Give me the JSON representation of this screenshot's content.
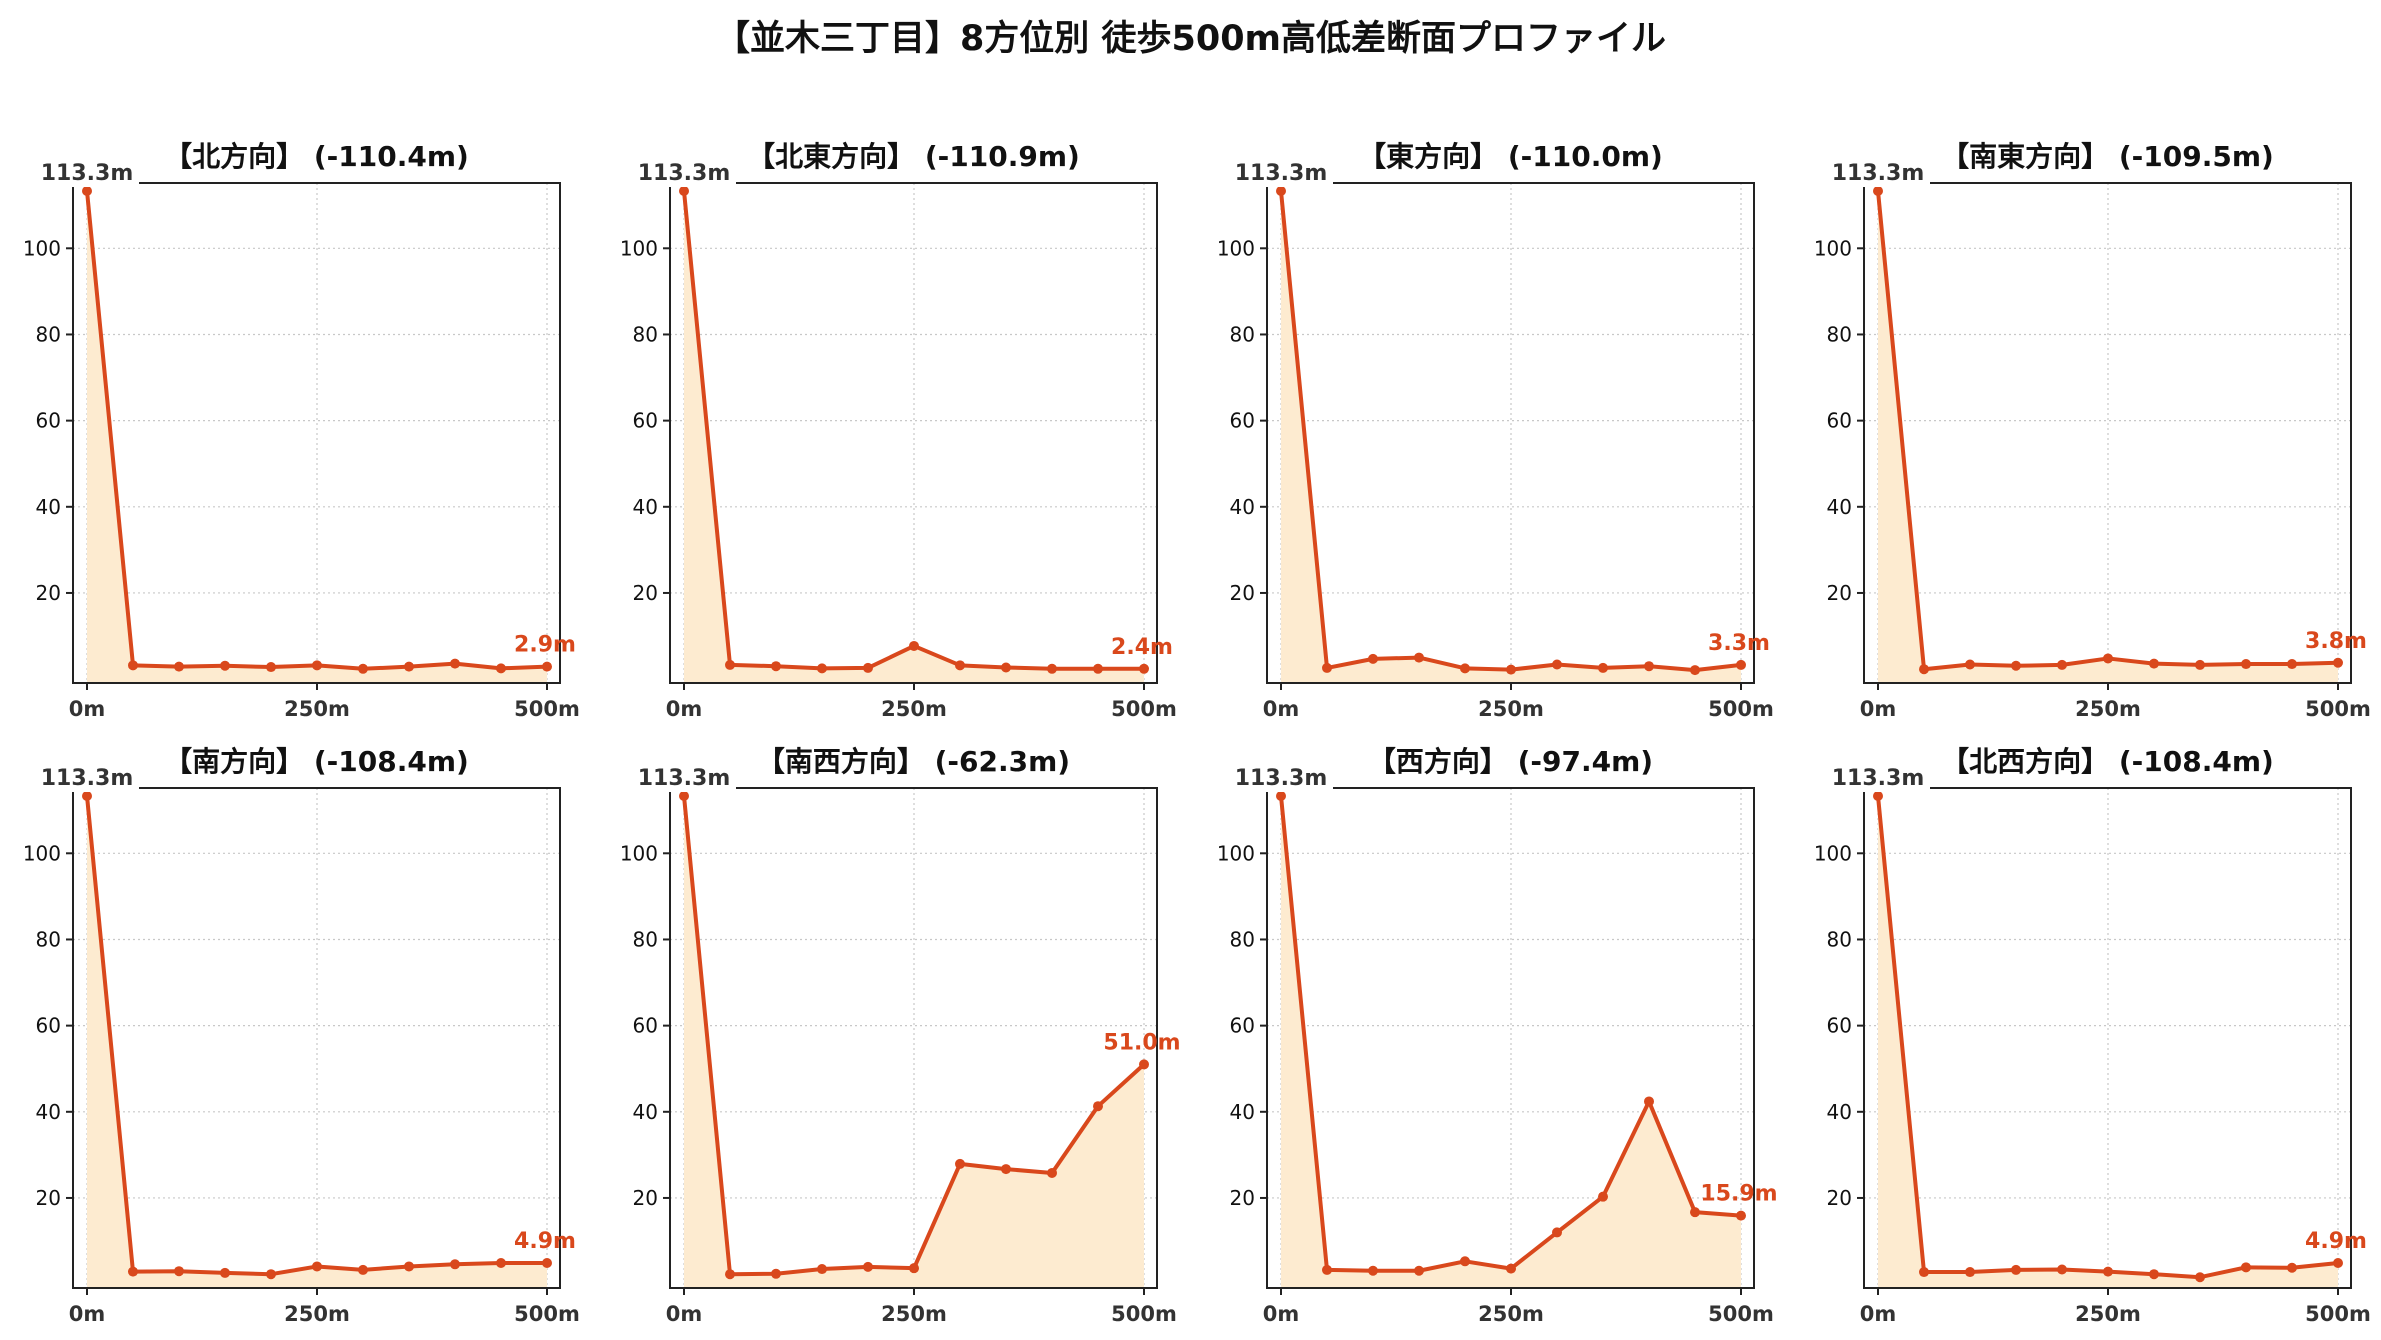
{
  "figure_title": "【並木三丁目】8方位別 徒歩500m高低差断面プロファイル",
  "colors": {
    "line": "#d9481c",
    "fill": "#fdebd0",
    "grid": "#c8c8c8",
    "axis": "#222222",
    "tick_text": "#333333"
  },
  "chart_data": [
    {
      "type": "area",
      "title": "【北方向】 (-110.4m)",
      "x": [
        0,
        50,
        100,
        150,
        200,
        250,
        300,
        350,
        400,
        450,
        500
      ],
      "values": [
        113.3,
        3.2,
        2.9,
        3.1,
        2.8,
        3.2,
        2.4,
        2.9,
        3.6,
        2.5,
        2.9
      ],
      "x_tick_labels": [
        "0m",
        "250m",
        "500m"
      ],
      "y_ticks": [
        20,
        40,
        60,
        80,
        100
      ],
      "start_label": "113.3m",
      "end_label": "2.9m",
      "xlim": [
        0,
        500
      ],
      "ylim": [
        0,
        113.3
      ],
      "grid": true
    },
    {
      "type": "area",
      "title": "【北東方向】 (-110.9m)",
      "x": [
        0,
        50,
        100,
        150,
        200,
        250,
        300,
        350,
        400,
        450,
        500
      ],
      "values": [
        113.3,
        3.3,
        3.0,
        2.5,
        2.6,
        7.7,
        3.2,
        2.7,
        2.4,
        2.4,
        2.4
      ],
      "x_tick_labels": [
        "0m",
        "250m",
        "500m"
      ],
      "y_ticks": [
        20,
        40,
        60,
        80,
        100
      ],
      "start_label": "113.3m",
      "end_label": "2.4m",
      "xlim": [
        0,
        500
      ],
      "ylim": [
        0,
        113.3
      ],
      "grid": true
    },
    {
      "type": "area",
      "title": "【東方向】 (-110.0m)",
      "x": [
        0,
        50,
        100,
        150,
        200,
        250,
        300,
        350,
        400,
        450,
        500
      ],
      "values": [
        113.3,
        2.6,
        4.7,
        5.0,
        2.5,
        2.2,
        3.4,
        2.6,
        3.0,
        2.1,
        3.3
      ],
      "x_tick_labels": [
        "0m",
        "250m",
        "500m"
      ],
      "y_ticks": [
        20,
        40,
        60,
        80,
        100
      ],
      "start_label": "113.3m",
      "end_label": "3.3m",
      "xlim": [
        0,
        500
      ],
      "ylim": [
        0,
        113.3
      ],
      "grid": true
    },
    {
      "type": "area",
      "title": "【南東方向】 (-109.5m)",
      "x": [
        0,
        50,
        100,
        150,
        200,
        250,
        300,
        350,
        400,
        450,
        500
      ],
      "values": [
        113.3,
        2.3,
        3.4,
        3.1,
        3.3,
        4.8,
        3.6,
        3.3,
        3.5,
        3.5,
        3.8
      ],
      "x_tick_labels": [
        "0m",
        "250m",
        "500m"
      ],
      "y_ticks": [
        20,
        40,
        60,
        80,
        100
      ],
      "start_label": "113.3m",
      "end_label": "3.8m",
      "xlim": [
        0,
        500
      ],
      "ylim": [
        0,
        113.3
      ],
      "grid": true
    },
    {
      "type": "area",
      "title": "【南方向】 (-108.4m)",
      "x": [
        0,
        50,
        100,
        150,
        200,
        250,
        300,
        350,
        400,
        450,
        500
      ],
      "values": [
        113.3,
        2.9,
        3.0,
        2.6,
        2.3,
        4.1,
        3.3,
        4.1,
        4.6,
        4.9,
        4.9
      ],
      "x_tick_labels": [
        "0m",
        "250m",
        "500m"
      ],
      "y_ticks": [
        20,
        40,
        60,
        80,
        100
      ],
      "start_label": "113.3m",
      "end_label": "4.9m",
      "xlim": [
        0,
        500
      ],
      "ylim": [
        0,
        113.3
      ],
      "grid": true
    },
    {
      "type": "area",
      "title": "【南西方向】 (-62.3m)",
      "x": [
        0,
        50,
        100,
        150,
        200,
        250,
        300,
        350,
        400,
        450,
        500
      ],
      "values": [
        113.3,
        2.3,
        2.4,
        3.5,
        4.0,
        3.7,
        27.9,
        26.7,
        25.8,
        41.3,
        51.0
      ],
      "x_tick_labels": [
        "0m",
        "250m",
        "500m"
      ],
      "y_ticks": [
        20,
        40,
        60,
        80,
        100
      ],
      "start_label": "113.3m",
      "end_label": "51.0m",
      "xlim": [
        0,
        500
      ],
      "ylim": [
        0,
        113.3
      ],
      "grid": true
    },
    {
      "type": "area",
      "title": "【西方向】 (-97.4m)",
      "x": [
        0,
        50,
        100,
        150,
        200,
        250,
        300,
        350,
        400,
        450,
        500
      ],
      "values": [
        113.3,
        3.3,
        3.1,
        3.1,
        5.3,
        3.6,
        12.0,
        20.3,
        42.4,
        16.7,
        15.9
      ],
      "x_tick_labels": [
        "0m",
        "250m",
        "500m"
      ],
      "y_ticks": [
        20,
        40,
        60,
        80,
        100
      ],
      "start_label": "113.3m",
      "end_label": "15.9m",
      "xlim": [
        0,
        500
      ],
      "ylim": [
        0,
        113.3
      ],
      "grid": true
    },
    {
      "type": "area",
      "title": "【北西方向】 (-108.4m)",
      "x": [
        0,
        50,
        100,
        150,
        200,
        250,
        300,
        350,
        400,
        450,
        500
      ],
      "values": [
        113.3,
        2.8,
        2.8,
        3.3,
        3.4,
        2.9,
        2.3,
        1.6,
        3.9,
        3.8,
        4.9
      ],
      "x_tick_labels": [
        "0m",
        "250m",
        "500m"
      ],
      "y_ticks": [
        20,
        40,
        60,
        80,
        100
      ],
      "start_label": "113.3m",
      "end_label": "4.9m",
      "xlim": [
        0,
        500
      ],
      "ylim": [
        0,
        113.3
      ],
      "grid": true
    }
  ]
}
